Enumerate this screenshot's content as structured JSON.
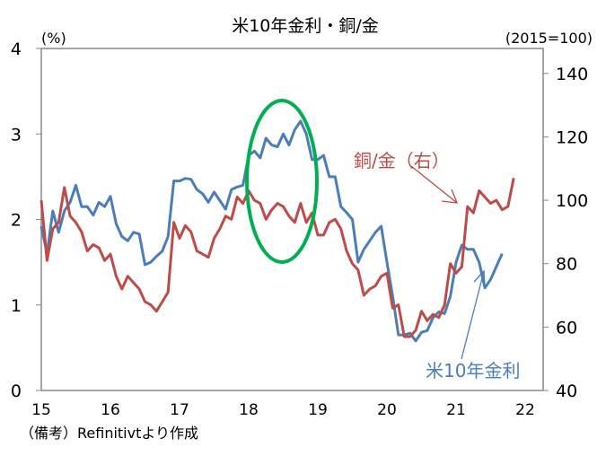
{
  "chart_data": {
    "type": "line",
    "title": "米10年金利・銅/金",
    "left_unit": "(%)",
    "right_unit": "(2015=100)",
    "note": "（備考）Refinitivtより作成",
    "x_ticks": [
      "15",
      "16",
      "17",
      "18",
      "19",
      "20",
      "21",
      "22"
    ],
    "x_range": [
      2015,
      2022
    ],
    "left_ticks": [
      "0",
      "1",
      "2",
      "3",
      "4"
    ],
    "left_range": [
      0,
      4
    ],
    "right_ticks": [
      "40",
      "60",
      "80",
      "100",
      "120",
      "140"
    ],
    "right_range": [
      40,
      149
    ],
    "series": [
      {
        "name": "米10年金利",
        "axis": "left",
        "color": "#4a7ebb",
        "start": 2015.0,
        "step_months": 1,
        "values": [
          1.92,
          1.6,
          2.1,
          1.85,
          2.1,
          2.2,
          2.4,
          2.15,
          2.15,
          2.05,
          2.2,
          2.15,
          2.27,
          1.95,
          1.8,
          1.75,
          1.85,
          1.83,
          1.47,
          1.5,
          1.57,
          1.63,
          1.8,
          2.45,
          2.45,
          2.48,
          2.47,
          2.35,
          2.3,
          2.2,
          2.32,
          2.22,
          2.12,
          2.35,
          2.38,
          2.4,
          2.75,
          2.8,
          2.72,
          2.95,
          2.87,
          2.85,
          3.0,
          2.87,
          3.05,
          3.15,
          3.0,
          2.7,
          2.7,
          2.75,
          2.5,
          2.5,
          2.15,
          2.08,
          2.0,
          1.5,
          1.65,
          1.75,
          1.85,
          1.92,
          1.5,
          1.1,
          0.65,
          0.65,
          0.67,
          0.58,
          0.68,
          0.7,
          0.85,
          0.92,
          0.9,
          1.1,
          1.5,
          1.7,
          1.65,
          1.65,
          1.5,
          1.2,
          1.3,
          1.45,
          1.6
        ]
      },
      {
        "name": "銅/金（右）",
        "axis": "right",
        "color": "#be4b48",
        "start": 2015.0,
        "step_months": 1,
        "values": [
          100,
          81,
          91,
          93,
          104,
          95,
          93,
          90,
          84,
          86,
          85,
          81,
          83,
          76,
          72,
          76,
          74,
          72,
          68,
          67,
          65,
          68,
          71,
          93,
          88,
          92,
          90,
          84,
          83,
          82,
          88,
          91,
          95,
          94,
          101,
          99,
          103,
          100,
          99,
          94,
          97,
          99,
          98,
          95,
          93,
          99,
          93,
          96,
          89,
          89,
          93,
          94,
          91,
          84,
          80,
          78,
          70,
          72,
          73,
          76,
          77,
          66,
          67,
          57,
          57,
          59,
          65,
          62,
          64,
          63,
          67,
          80,
          77,
          79,
          98,
          96,
          103,
          101,
          99,
          100,
          97,
          98,
          107
        ]
      }
    ],
    "annotations": {
      "copper_gold_label": "銅/金（右）",
      "yield_label": "米10年金利",
      "highlight_color": "#00b050"
    }
  }
}
